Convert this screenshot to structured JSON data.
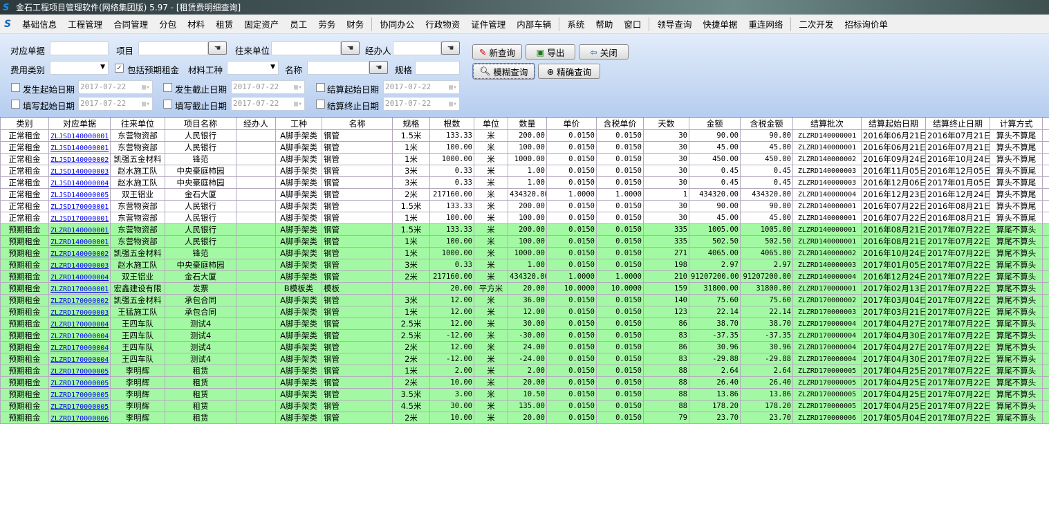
{
  "window": {
    "title": "金石工程项目管理软件(网络集团版) 5.97 - [租赁费明细查询]"
  },
  "menu": [
    "基础信息",
    "工程管理",
    "合同管理",
    "分包",
    "材料",
    "租赁",
    "固定资产",
    "员工",
    "劳务",
    "财务",
    "|",
    "协同办公",
    "行政物资",
    "证件管理",
    "内部车辆",
    "|",
    "系统",
    "帮助",
    "窗口",
    "|",
    "领导查询",
    "快捷单据",
    "重连网络",
    "|",
    "二次开发",
    "招标询价单"
  ],
  "filters": {
    "doc_label": "对应单据",
    "project_label": "项目",
    "partner_label": "往来单位",
    "handler_label": "经办人",
    "fee_type_label": "费用类别",
    "include_expected_label": "包括预期租金",
    "include_expected_checked": true,
    "material_type_label": "材料工种",
    "name_label": "名称",
    "spec_label": "规格",
    "occur_start_label": "发生起始日期",
    "occur_end_label": "发生截止日期",
    "settle_start_label": "结算起始日期",
    "fill_start_label": "填写起始日期",
    "fill_end_label": "填写截止日期",
    "settle_end_label": "结算终止日期",
    "date_value": "2017-07-22"
  },
  "buttons": {
    "new_query": "新查询",
    "export": "导出",
    "close": "关闭",
    "fuzzy_query": "模糊查询",
    "exact_query": "精确查询"
  },
  "colors": {
    "expected_row": "#a3f9a3",
    "link": "#0000ee"
  },
  "table": {
    "columns": [
      "类别",
      "对应单据",
      "往来单位",
      "项目名称",
      "经办人",
      "工种",
      "名称",
      "规格",
      "根数",
      "单位",
      "数量",
      "单价",
      "含税单价",
      "天数",
      "金额",
      "含税金额",
      "结算批次",
      "结算起始日期",
      "结算终止日期",
      "计算方式"
    ],
    "rows": [
      [
        "正常租金",
        "ZLJSD140000001",
        "东营物资部",
        "人民银行",
        "",
        "A脚手架类",
        "钢管",
        "1.5米",
        "133.33",
        "米",
        "200.00",
        "0.0150",
        "0.0150",
        "30",
        "90.00",
        "90.00",
        "ZLZRD140000001",
        "2016年06月21日",
        "2016年07月21日",
        "算头不算尾"
      ],
      [
        "正常租金",
        "ZLJSD140000001",
        "东营物资部",
        "人民银行",
        "",
        "A脚手架类",
        "钢管",
        "1米",
        "100.00",
        "米",
        "100.00",
        "0.0150",
        "0.0150",
        "30",
        "45.00",
        "45.00",
        "ZLZRD140000001",
        "2016年06月21日",
        "2016年07月21日",
        "算头不算尾"
      ],
      [
        "正常租金",
        "ZLJSD140000002",
        "凯强五金材料",
        "锋范",
        "",
        "A脚手架类",
        "钢管",
        "1米",
        "1000.00",
        "米",
        "1000.00",
        "0.0150",
        "0.0150",
        "30",
        "450.00",
        "450.00",
        "ZLZRD140000002",
        "2016年09月24日",
        "2016年10月24日",
        "算头不算尾"
      ],
      [
        "正常租金",
        "ZLJSD140000003",
        "赵水施工队",
        "中央豪庭柿园",
        "",
        "A脚手架类",
        "钢管",
        "3米",
        "0.33",
        "米",
        "1.00",
        "0.0150",
        "0.0150",
        "30",
        "0.45",
        "0.45",
        "ZLZRD140000003",
        "2016年11月05日",
        "2016年12月05日",
        "算头不算尾"
      ],
      [
        "正常租金",
        "ZLJSD140000004",
        "赵水施工队",
        "中央豪庭柿园",
        "",
        "A脚手架类",
        "钢管",
        "3米",
        "0.33",
        "米",
        "1.00",
        "0.0150",
        "0.0150",
        "30",
        "0.45",
        "0.45",
        "ZLZRD140000003",
        "2016年12月06日",
        "2017年01月05日",
        "算头不算尾"
      ],
      [
        "正常租金",
        "ZLJSD140000005",
        "双王铝业",
        "金石大厦",
        "",
        "A脚手架类",
        "钢管",
        "2米",
        "217160.00",
        "米",
        "434320.00",
        "1.0000",
        "1.0000",
        "1",
        "434320.00",
        "434320.00",
        "ZLZRD140000004",
        "2016年12月23日",
        "2016年12月24日",
        "算头不算尾"
      ],
      [
        "正常租金",
        "ZLJSD170000001",
        "东营物资部",
        "人民银行",
        "",
        "A脚手架类",
        "钢管",
        "1.5米",
        "133.33",
        "米",
        "200.00",
        "0.0150",
        "0.0150",
        "30",
        "90.00",
        "90.00",
        "ZLZRD140000001",
        "2016年07月22日",
        "2016年08月21日",
        "算头不算尾"
      ],
      [
        "正常租金",
        "ZLJSD170000001",
        "东营物资部",
        "人民银行",
        "",
        "A脚手架类",
        "钢管",
        "1米",
        "100.00",
        "米",
        "100.00",
        "0.0150",
        "0.0150",
        "30",
        "45.00",
        "45.00",
        "ZLZRD140000001",
        "2016年07月22日",
        "2016年08月21日",
        "算头不算尾"
      ],
      [
        "预期租金",
        "ZLZRD140000001",
        "东营物资部",
        "人民银行",
        "",
        "A脚手架类",
        "钢管",
        "1.5米",
        "133.33",
        "米",
        "200.00",
        "0.0150",
        "0.0150",
        "335",
        "1005.00",
        "1005.00",
        "ZLZRD140000001",
        "2016年08月21日",
        "2017年07月22日",
        "算尾不算头"
      ],
      [
        "预期租金",
        "ZLZRD140000001",
        "东营物资部",
        "人民银行",
        "",
        "A脚手架类",
        "钢管",
        "1米",
        "100.00",
        "米",
        "100.00",
        "0.0150",
        "0.0150",
        "335",
        "502.50",
        "502.50",
        "ZLZRD140000001",
        "2016年08月21日",
        "2017年07月22日",
        "算尾不算头"
      ],
      [
        "预期租金",
        "ZLZRD140000002",
        "凯强五金材料",
        "锋范",
        "",
        "A脚手架类",
        "钢管",
        "1米",
        "1000.00",
        "米",
        "1000.00",
        "0.0150",
        "0.0150",
        "271",
        "4065.00",
        "4065.00",
        "ZLZRD140000002",
        "2016年10月24日",
        "2017年07月22日",
        "算尾不算头"
      ],
      [
        "预期租金",
        "ZLZRD140000003",
        "赵水施工队",
        "中央豪庭柿园",
        "",
        "A脚手架类",
        "钢管",
        "3米",
        "0.33",
        "米",
        "1.00",
        "0.0150",
        "0.0150",
        "198",
        "2.97",
        "2.97",
        "ZLZRD140000003",
        "2017年01月05日",
        "2017年07月22日",
        "算尾不算头"
      ],
      [
        "预期租金",
        "ZLZRD140000004",
        "双王铝业",
        "金石大厦",
        "",
        "A脚手架类",
        "钢管",
        "2米",
        "217160.00",
        "米",
        "434320.00",
        "1.0000",
        "1.0000",
        "210",
        "91207200.00",
        "91207200.00",
        "ZLZRD140000004",
        "2016年12月24日",
        "2017年07月22日",
        "算尾不算头"
      ],
      [
        "预期租金",
        "ZLZRD170000001",
        "宏鑫建设有限",
        "发票",
        "",
        "B模板类",
        "模板",
        "",
        "20.00",
        "平方米",
        "20.00",
        "10.0000",
        "10.0000",
        "159",
        "31800.00",
        "31800.00",
        "ZLZRD170000001",
        "2017年02月13日",
        "2017年07月22日",
        "算尾不算头"
      ],
      [
        "预期租金",
        "ZLZRD170000002",
        "凯强五金材料",
        "承包合同",
        "",
        "A脚手架类",
        "钢管",
        "3米",
        "12.00",
        "米",
        "36.00",
        "0.0150",
        "0.0150",
        "140",
        "75.60",
        "75.60",
        "ZLZRD170000002",
        "2017年03月04日",
        "2017年07月22日",
        "算尾不算头"
      ],
      [
        "预期租金",
        "ZLZRD170000003",
        "王猛施工队",
        "承包合同",
        "",
        "A脚手架类",
        "钢管",
        "1米",
        "12.00",
        "米",
        "12.00",
        "0.0150",
        "0.0150",
        "123",
        "22.14",
        "22.14",
        "ZLZRD170000003",
        "2017年03月21日",
        "2017年07月22日",
        "算尾不算头"
      ],
      [
        "预期租金",
        "ZLZRD170000004",
        "王四车队",
        "测试4",
        "",
        "A脚手架类",
        "钢管",
        "2.5米",
        "12.00",
        "米",
        "30.00",
        "0.0150",
        "0.0150",
        "86",
        "38.70",
        "38.70",
        "ZLZRD170000004",
        "2017年04月27日",
        "2017年07月22日",
        "算尾不算头"
      ],
      [
        "预期租金",
        "ZLZRD170000004",
        "王四车队",
        "测试4",
        "",
        "A脚手架类",
        "钢管",
        "2.5米",
        "-12.00",
        "米",
        "-30.00",
        "0.0150",
        "0.0150",
        "83",
        "-37.35",
        "-37.35",
        "ZLZRD170000004",
        "2017年04月30日",
        "2017年07月22日",
        "算尾不算头"
      ],
      [
        "预期租金",
        "ZLZRD170000004",
        "王四车队",
        "测试4",
        "",
        "A脚手架类",
        "钢管",
        "2米",
        "12.00",
        "米",
        "24.00",
        "0.0150",
        "0.0150",
        "86",
        "30.96",
        "30.96",
        "ZLZRD170000004",
        "2017年04月27日",
        "2017年07月22日",
        "算尾不算头"
      ],
      [
        "预期租金",
        "ZLZRD170000004",
        "王四车队",
        "测试4",
        "",
        "A脚手架类",
        "钢管",
        "2米",
        "-12.00",
        "米",
        "-24.00",
        "0.0150",
        "0.0150",
        "83",
        "-29.88",
        "-29.88",
        "ZLZRD170000004",
        "2017年04月30日",
        "2017年07月22日",
        "算尾不算头"
      ],
      [
        "预期租金",
        "ZLZRD170000005",
        "李明辉",
        "租赁",
        "",
        "A脚手架类",
        "钢管",
        "1米",
        "2.00",
        "米",
        "2.00",
        "0.0150",
        "0.0150",
        "88",
        "2.64",
        "2.64",
        "ZLZRD170000005",
        "2017年04月25日",
        "2017年07月22日",
        "算尾不算头"
      ],
      [
        "预期租金",
        "ZLZRD170000005",
        "李明辉",
        "租赁",
        "",
        "A脚手架类",
        "钢管",
        "2米",
        "10.00",
        "米",
        "20.00",
        "0.0150",
        "0.0150",
        "88",
        "26.40",
        "26.40",
        "ZLZRD170000005",
        "2017年04月25日",
        "2017年07月22日",
        "算尾不算头"
      ],
      [
        "预期租金",
        "ZLZRD170000005",
        "李明辉",
        "租赁",
        "",
        "A脚手架类",
        "钢管",
        "3.5米",
        "3.00",
        "米",
        "10.50",
        "0.0150",
        "0.0150",
        "88",
        "13.86",
        "13.86",
        "ZLZRD170000005",
        "2017年04月25日",
        "2017年07月22日",
        "算尾不算头"
      ],
      [
        "预期租金",
        "ZLZRD170000005",
        "李明辉",
        "租赁",
        "",
        "A脚手架类",
        "钢管",
        "4.5米",
        "30.00",
        "米",
        "135.00",
        "0.0150",
        "0.0150",
        "88",
        "178.20",
        "178.20",
        "ZLZRD170000005",
        "2017年04月25日",
        "2017年07月22日",
        "算尾不算头"
      ],
      [
        "预期租金",
        "ZLZRD170000006",
        "李明辉",
        "租赁",
        "",
        "A脚手架类",
        "钢管",
        "2米",
        "10.00",
        "米",
        "20.00",
        "0.0150",
        "0.0150",
        "79",
        "23.70",
        "23.70",
        "ZLZRD170000006",
        "2017年05月04日",
        "2017年07月22日",
        "算尾不算头"
      ]
    ]
  }
}
